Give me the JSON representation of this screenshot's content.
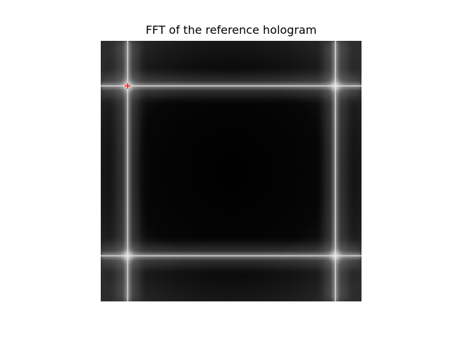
{
  "chart_data": {
    "type": "heatmap",
    "title": "FFT of the reference hologram",
    "xlabel": "",
    "ylabel": "",
    "axes_visible": false,
    "colormap": "gray",
    "grid": false,
    "background_color": "#000000",
    "marker_color": "#ff0000",
    "line_color": "#ffffff",
    "bright_lines": {
      "vertical_x": [
        0.103,
        0.9
      ],
      "horizontal_y": [
        0.173,
        0.825
      ]
    },
    "markers": [
      {
        "shape": "plus",
        "x": 0.103,
        "y": 0.173
      }
    ]
  }
}
